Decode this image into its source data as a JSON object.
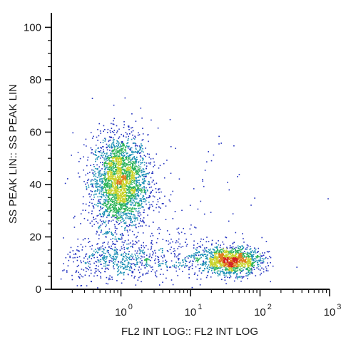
{
  "chart_data": {
    "type": "scatter",
    "style": "density-colored dot plot (blue-green-yellow-red)",
    "xlabel": "FL2 INT LOG:: FL2 INT LOG",
    "ylabel": "SS PEAK LIN:: SS PEAK LIN",
    "x_scale": "log",
    "xlim": [
      0.1,
      1000
    ],
    "ylim": [
      0,
      105
    ],
    "x_ticks": [
      {
        "base": "10",
        "exp": "0",
        "value": 1
      },
      {
        "base": "10",
        "exp": "1",
        "value": 10
      },
      {
        "base": "10",
        "exp": "2",
        "value": 100
      },
      {
        "base": "10",
        "exp": "3",
        "value": 1000
      }
    ],
    "y_ticks": [
      "0",
      "20",
      "40",
      "60",
      "80",
      "100"
    ],
    "y_tick_values": [
      0,
      20,
      40,
      60,
      80,
      100
    ],
    "grid": false,
    "density_colors": [
      "#1f2fbf",
      "#1a8fb5",
      "#2db35a",
      "#c8d22a",
      "#e07a1e",
      "#d42020"
    ],
    "populations": [
      {
        "x_center": 0.95,
        "y_center": 41,
        "x_log_spread": 0.2,
        "y_spread": 9,
        "points": 2600
      },
      {
        "x_center": 0.85,
        "y_center": 11,
        "x_log_spread": 0.38,
        "y_spread": 4,
        "points": 500
      },
      {
        "x_center": 38,
        "y_center": 11,
        "x_log_spread": 0.22,
        "y_spread": 2.6,
        "points": 1300
      },
      {
        "x_center": 8,
        "y_center": 13,
        "x_log_spread": 0.45,
        "y_spread": 4,
        "points": 250
      },
      {
        "x_center": 3,
        "y_center": 30,
        "x_log_spread": 0.7,
        "y_spread": 14,
        "points": 160
      }
    ]
  }
}
